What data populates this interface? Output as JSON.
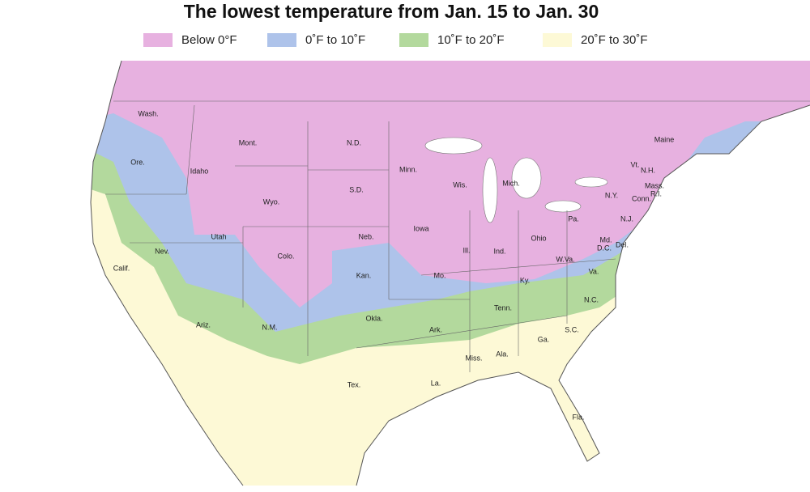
{
  "title": "The lowest temperature from Jan. 15 to Jan. 30",
  "legend": [
    {
      "label": "Below 0°F",
      "color": "#e7b1e0"
    },
    {
      "label": "0˚F to 10˚F",
      "color": "#aec3ea"
    },
    {
      "label": "10˚F to 20˚F",
      "color": "#b3d99d"
    },
    {
      "label": "20˚F to 30˚F",
      "color": "#fdf9d6"
    }
  ],
  "labels": [
    "Wash.",
    "Mont.",
    "N.D.",
    "Minn.",
    "Ore.",
    "Idaho",
    "S.D.",
    "Wis.",
    "Mich.",
    "N.Y.",
    "Maine",
    "Vt.",
    "N.H.",
    "Mass.",
    "Conn.",
    "R.I.",
    "Wyo.",
    "Iowa",
    "Neb.",
    "Pa.",
    "N.J.",
    "Utah",
    "Nev.",
    "Ill.",
    "Ind.",
    "Ohio",
    "Md.",
    "Del.",
    "D.C.",
    "Colo.",
    "Calif.",
    "Kan.",
    "Mo.",
    "W.Va.",
    "Va.",
    "Ky.",
    "N.C.",
    "Tenn.",
    "Okla.",
    "Ark.",
    "Ariz.",
    "N.M.",
    "S.C.",
    "Ga.",
    "Miss.",
    "Ala.",
    "Tex.",
    "La.",
    "Fla."
  ]
}
